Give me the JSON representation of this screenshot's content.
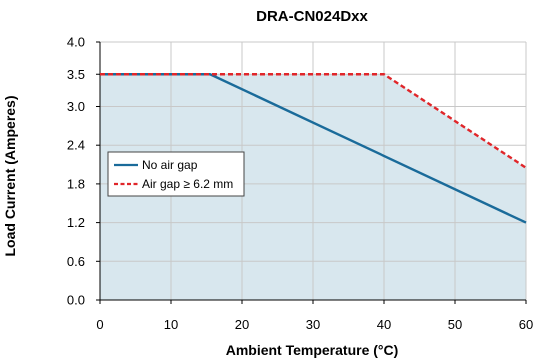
{
  "chart_data": {
    "type": "line",
    "title": "DRA-CN024Dxx",
    "xlabel": "Ambient Temperature (°C)",
    "ylabel": "Load Current (Amperes)",
    "xlim": [
      0,
      60
    ],
    "ylim": [
      0,
      4.0
    ],
    "x_ticks": [
      0,
      10,
      20,
      30,
      40,
      50,
      60
    ],
    "y_ticks": [
      0.0,
      0.6,
      1.2,
      1.8,
      2.4,
      3.0,
      3.5,
      4.0
    ],
    "x_tick_labels": [
      "0",
      "10",
      "20",
      "30",
      "40",
      "50",
      "60"
    ],
    "y_tick_labels": [
      "0.0",
      "0.6",
      "1.2",
      "1.8",
      "2.4",
      "3.0",
      "3.5",
      "4.0"
    ],
    "grid": true,
    "legend_position": "left-middle",
    "series": [
      {
        "name": "No air gap",
        "style": "solid",
        "color": "#1a6b9a",
        "points": [
          [
            0,
            3.5
          ],
          [
            15.5,
            3.5
          ],
          [
            60,
            1.2
          ]
        ]
      },
      {
        "name": "Air gap ≥ 6.2 mm",
        "style": "dashed",
        "color": "#e0262a",
        "points": [
          [
            0,
            3.5
          ],
          [
            40,
            3.5
          ],
          [
            60,
            2.05
          ]
        ]
      }
    ],
    "fill_area_color": "#d8e7ee"
  }
}
